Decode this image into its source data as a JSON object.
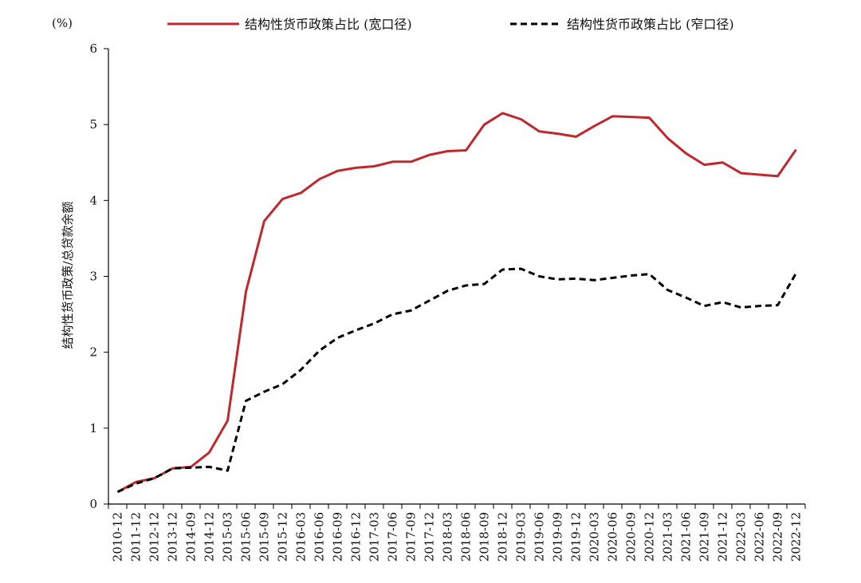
{
  "chart_data": {
    "type": "line",
    "unit_label": "(%)",
    "ylabel": "结构性货币政策/总贷款余额",
    "xlabel": "",
    "ylim": [
      0,
      6
    ],
    "yticks": [
      0,
      1,
      2,
      3,
      4,
      5,
      6
    ],
    "grid": false,
    "legend_position": "top",
    "categories": [
      "2010-12",
      "2011-12",
      "2012-12",
      "2013-12",
      "2014-09",
      "2014-12",
      "2015-03",
      "2015-06",
      "2015-09",
      "2015-12",
      "2016-03",
      "2016-06",
      "2016-09",
      "2016-12",
      "2017-03",
      "2017-06",
      "2017-09",
      "2017-12",
      "2018-03",
      "2018-06",
      "2018-09",
      "2018-12",
      "2019-03",
      "2019-06",
      "2019-09",
      "2019-12",
      "2020-03",
      "2020-06",
      "2020-09",
      "2020-12",
      "2021-03",
      "2021-06",
      "2021-09",
      "2021-12",
      "2022-03",
      "2022-06",
      "2022-09",
      "2022-12"
    ],
    "series": [
      {
        "name": "结构性货币政策占比 (宽口径)",
        "color": "#c0282d",
        "style": "solid",
        "values": [
          0.16,
          0.29,
          0.34,
          0.47,
          0.49,
          0.68,
          1.1,
          2.8,
          3.73,
          4.02,
          4.1,
          4.28,
          4.39,
          4.43,
          4.45,
          4.51,
          4.51,
          4.6,
          4.65,
          4.66,
          5.0,
          5.15,
          5.07,
          4.91,
          4.88,
          4.84,
          4.98,
          5.11,
          5.1,
          5.09,
          4.82,
          4.62,
          4.47,
          4.5,
          4.36,
          4.34,
          4.32,
          4.67
        ]
      },
      {
        "name": "结构性货币政策占比 (窄口径)",
        "color": "#000000",
        "style": "dashed",
        "values": [
          0.16,
          0.27,
          0.34,
          0.47,
          0.48,
          0.49,
          0.44,
          1.36,
          1.48,
          1.58,
          1.77,
          2.02,
          2.19,
          2.29,
          2.38,
          2.5,
          2.55,
          2.68,
          2.81,
          2.88,
          2.9,
          3.09,
          3.1,
          3.0,
          2.96,
          2.97,
          2.95,
          2.98,
          3.01,
          3.03,
          2.82,
          2.72,
          2.61,
          2.66,
          2.59,
          2.61,
          2.62,
          3.04
        ]
      }
    ]
  }
}
